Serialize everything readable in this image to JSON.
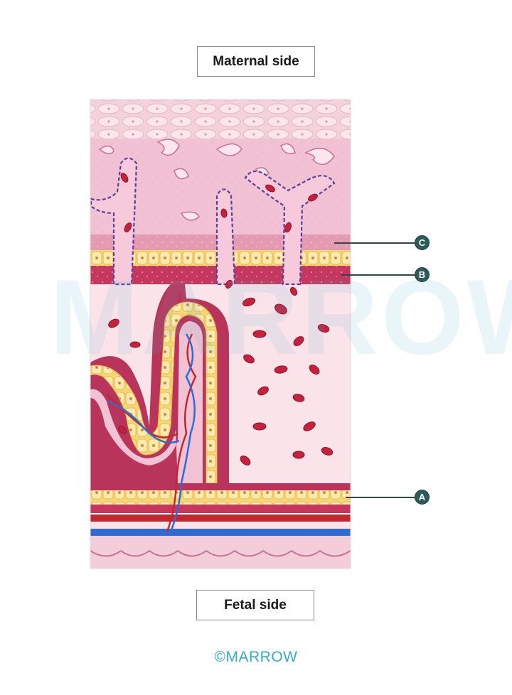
{
  "labels": {
    "maternal": "Maternal side",
    "fetal": "Fetal side"
  },
  "markers": {
    "a": "A",
    "b": "B",
    "c": "C"
  },
  "brand": "©MARROW",
  "watermark": "MARROW",
  "colors": {
    "tissue_pink": "#f3c6d6",
    "stroma": "#b9345a",
    "trophoblast_yellow": "#f6d774",
    "artery": "#c0292f",
    "vein": "#2f6bd1",
    "marker": "#2d5a5a",
    "brand": "#3ba6c6"
  }
}
